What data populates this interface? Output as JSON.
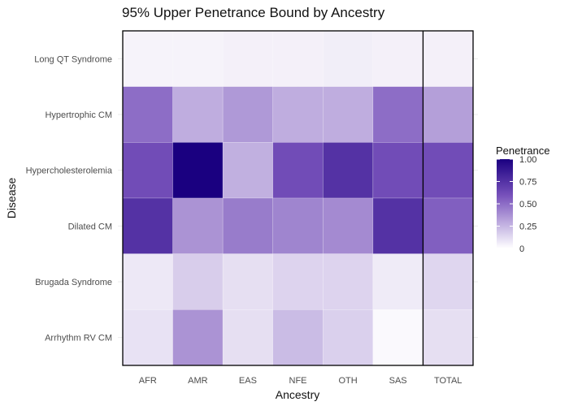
{
  "chart_data": {
    "type": "heatmap",
    "title": "95% Upper Penetrance Bound by Ancestry",
    "xlabel": "Ancestry",
    "ylabel": "Disease",
    "x_categories": [
      "AFR",
      "AMR",
      "EAS",
      "NFE",
      "OTH",
      "SAS",
      "TOTAL"
    ],
    "y_categories": [
      "Long QT Syndrome",
      "Hypertrophic CM",
      "Hypercholesterolemia",
      "Dilated CM",
      "Brugada Syndrome",
      "Arrhythm RV CM"
    ],
    "values": [
      [
        0.04,
        0.04,
        0.05,
        0.05,
        0.06,
        0.05,
        0.05
      ],
      [
        0.5,
        0.28,
        0.35,
        0.28,
        0.28,
        0.5,
        0.33
      ],
      [
        0.62,
        1.0,
        0.27,
        0.62,
        0.75,
        0.62,
        0.62
      ],
      [
        0.75,
        0.37,
        0.45,
        0.42,
        0.4,
        0.75,
        0.55
      ],
      [
        0.08,
        0.17,
        0.11,
        0.15,
        0.15,
        0.07,
        0.14
      ],
      [
        0.1,
        0.37,
        0.11,
        0.23,
        0.16,
        0.02,
        0.11
      ]
    ],
    "legend": {
      "title": "Penetrance",
      "ticks": [
        "0",
        "0.25",
        "0.50",
        "0.75",
        "1.00"
      ],
      "tick_values": [
        0,
        0.25,
        0.5,
        0.75,
        1.0
      ],
      "placement": "right"
    },
    "color_scale": {
      "low": "#ffffff",
      "high": "#1a0080"
    },
    "value_range": [
      0,
      1
    ],
    "grid": true,
    "highlight_column": "TOTAL"
  }
}
